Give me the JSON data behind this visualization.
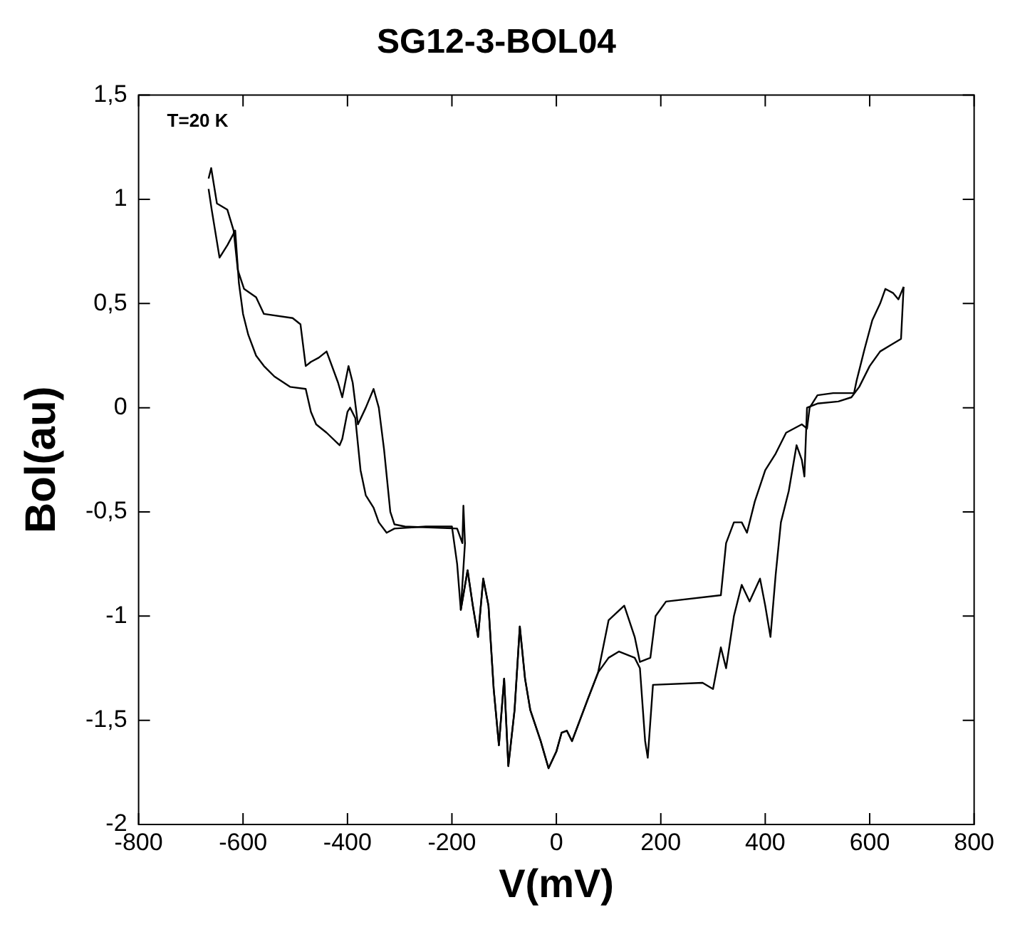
{
  "chart_data": {
    "type": "line",
    "title": "SG12-3-BOL04",
    "xlabel": "V(mV)",
    "ylabel": "Bol(au)",
    "annotations": [
      "T=20 K"
    ],
    "xlim": [
      -800,
      800
    ],
    "xticks": [
      -800,
      -600,
      -400,
      -200,
      0,
      200,
      400,
      600,
      800
    ],
    "ylim": [
      -2,
      1.5
    ],
    "yticks": [
      -2,
      {
        "value": -1.5,
        "label": "-1,5"
      },
      -1,
      {
        "value": -0.5,
        "label": "-0,5"
      },
      0,
      {
        "value": 0.5,
        "label": "0,5"
      },
      1,
      {
        "value": 1.5,
        "label": "1,5"
      }
    ],
    "grid": false,
    "legend": false,
    "marker": "none",
    "line_style": "solid",
    "series": [
      {
        "color": "#000000",
        "x": [
          -666,
          -661,
          -650,
          -630,
          -618,
          -610,
          -598,
          -575,
          -560,
          -505,
          -490,
          -480,
          -470,
          -455,
          -440,
          -418,
          -410,
          -398,
          -390,
          -380,
          -365,
          -350,
          -340,
          -330,
          -318,
          -310,
          -290,
          -190,
          -180,
          -178,
          -175,
          -183,
          -170,
          -160,
          -150,
          -140,
          -130,
          -120,
          -110,
          -100,
          -92,
          -80,
          -70,
          -60,
          -50,
          -30,
          -15,
          0,
          10,
          20,
          30,
          45,
          60,
          80,
          100,
          120,
          150,
          160,
          170,
          175,
          185,
          280,
          300,
          315,
          325,
          340,
          355,
          370,
          390,
          400,
          410,
          420,
          430,
          445,
          460,
          470,
          475,
          480,
          500,
          540,
          565,
          580,
          600,
          620,
          640,
          660,
          665
        ],
        "values": [
          1.1,
          1.15,
          0.98,
          0.95,
          0.85,
          0.66,
          0.57,
          0.53,
          0.45,
          0.43,
          0.4,
          0.2,
          0.22,
          0.24,
          0.27,
          0.12,
          0.05,
          0.2,
          0.12,
          -0.08,
          0.0,
          0.09,
          0.0,
          -0.2,
          -0.5,
          -0.56,
          -0.57,
          -0.58,
          -0.65,
          -0.47,
          -0.65,
          -0.97,
          -0.78,
          -0.95,
          -1.1,
          -0.82,
          -0.95,
          -1.35,
          -1.62,
          -1.3,
          -1.72,
          -1.45,
          -1.05,
          -1.3,
          -1.45,
          -1.6,
          -1.73,
          -1.65,
          -1.56,
          -1.55,
          -1.6,
          -1.5,
          -1.4,
          -1.27,
          -1.2,
          -1.17,
          -1.2,
          -1.25,
          -1.6,
          -1.68,
          -1.33,
          -1.32,
          -1.35,
          -1.15,
          -1.25,
          -1.0,
          -0.85,
          -0.93,
          -0.82,
          -0.95,
          -1.1,
          -0.8,
          -0.55,
          -0.4,
          -0.18,
          -0.25,
          -0.33,
          0.0,
          0.02,
          0.03,
          0.05,
          0.1,
          0.2,
          0.27,
          0.3,
          0.33,
          0.58
        ]
      },
      {
        "color": "#000000",
        "x": [
          -666,
          -660,
          -645,
          -630,
          -615,
          -608,
          -600,
          -590,
          -575,
          -560,
          -540,
          -510,
          -480,
          -470,
          -460,
          -440,
          -415,
          -410,
          -400,
          -395,
          -385,
          -375,
          -365,
          -350,
          -340,
          -325,
          -310,
          -250,
          -200,
          -190,
          -183,
          -170,
          -160,
          -150,
          -140,
          -130,
          -120,
          -110,
          -100,
          -92,
          -80,
          -70,
          -60,
          -50,
          -30,
          -15,
          0,
          10,
          20,
          30,
          45,
          60,
          80,
          100,
          130,
          150,
          160,
          180,
          190,
          210,
          315,
          325,
          340,
          355,
          365,
          380,
          400,
          420,
          440,
          470,
          480,
          485,
          500,
          530,
          570,
          575,
          590,
          605,
          620,
          630,
          645,
          655,
          665
        ],
        "values": [
          1.05,
          0.95,
          0.72,
          0.78,
          0.85,
          0.6,
          0.45,
          0.35,
          0.25,
          0.2,
          0.15,
          0.1,
          0.09,
          -0.02,
          -0.08,
          -0.12,
          -0.18,
          -0.15,
          -0.02,
          0.0,
          -0.05,
          -0.3,
          -0.42,
          -0.48,
          -0.55,
          -0.6,
          -0.58,
          -0.57,
          -0.57,
          -0.75,
          -0.97,
          -0.78,
          -0.95,
          -1.1,
          -0.82,
          -0.95,
          -1.35,
          -1.62,
          -1.3,
          -1.72,
          -1.45,
          -1.05,
          -1.3,
          -1.45,
          -1.6,
          -1.73,
          -1.65,
          -1.56,
          -1.55,
          -1.6,
          -1.5,
          -1.4,
          -1.27,
          -1.02,
          -0.95,
          -1.1,
          -1.22,
          -1.2,
          -1.0,
          -0.93,
          -0.9,
          -0.65,
          -0.55,
          -0.55,
          -0.6,
          -0.45,
          -0.3,
          -0.22,
          -0.12,
          -0.08,
          -0.1,
          0.0,
          0.06,
          0.07,
          0.07,
          0.13,
          0.28,
          0.42,
          0.5,
          0.57,
          0.55,
          0.52,
          0.58
        ]
      }
    ]
  }
}
